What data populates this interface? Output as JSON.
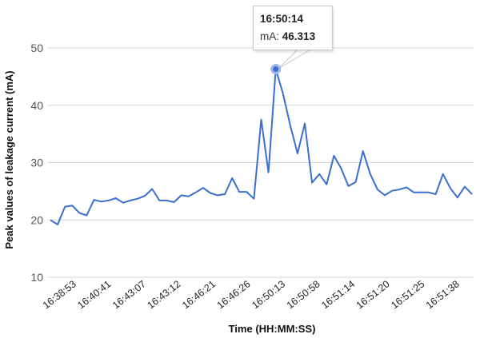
{
  "chart_data": {
    "type": "line",
    "ylabel": "Peak values of leakage current  (mA)",
    "xlabel": "Time (HH:MM:SS)",
    "ylim": [
      10,
      50
    ],
    "yticks": [
      10,
      20,
      30,
      40,
      50
    ],
    "xtick_labels": [
      "16:38:53",
      "16:40:41",
      "16:43:07",
      "16:43:12",
      "16:46:21",
      "16:46:26",
      "16:50:13",
      "16:50:58",
      "16:51:14",
      "16:51:20",
      "16:51:25",
      "16:51:38"
    ],
    "grid": "horizontal",
    "series": [
      {
        "color": "#3a6fd0",
        "values": [
          20.0,
          19.2,
          22.3,
          22.5,
          21.2,
          20.8,
          23.5,
          23.2,
          23.4,
          23.8,
          23.0,
          23.4,
          23.7,
          24.2,
          25.4,
          23.4,
          23.4,
          23.1,
          24.3,
          24.1,
          24.8,
          25.6,
          24.7,
          24.3,
          24.5,
          27.3,
          24.9,
          24.9,
          23.7,
          37.5,
          28.3,
          46.3,
          42.0,
          36.5,
          31.6,
          36.8,
          26.5,
          28.0,
          26.2,
          31.2,
          29.0,
          25.9,
          26.6,
          32.0,
          28.0,
          25.3,
          24.3,
          25.1,
          25.3,
          25.7,
          24.8,
          24.8,
          24.8,
          24.5,
          28.0,
          25.6,
          23.9,
          25.8,
          24.5
        ]
      }
    ]
  },
  "tooltip": {
    "time": "16:50:14",
    "label": "mA:",
    "value": "46.313"
  }
}
